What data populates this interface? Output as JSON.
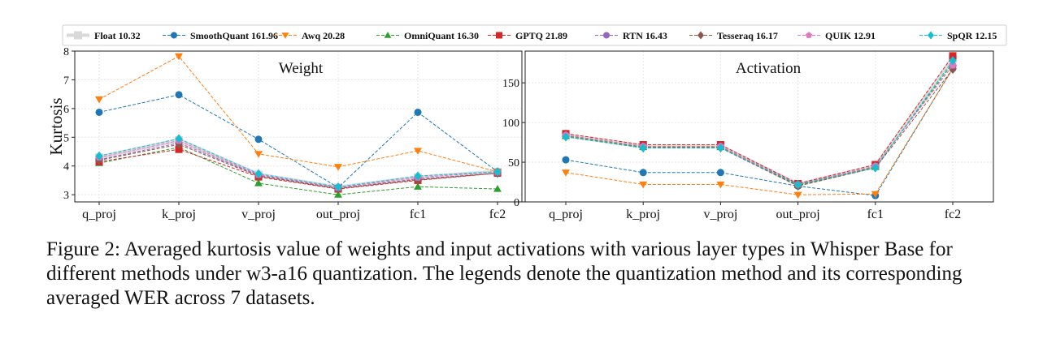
{
  "legend": [
    {
      "name": "Float 10.32",
      "color": "#d9d9d9",
      "marker": "square",
      "style": "solid"
    },
    {
      "name": "SmoothQuant 161.96",
      "color": "#1f77b4",
      "marker": "circle",
      "style": "dashed"
    },
    {
      "name": "Awq 20.28",
      "color": "#ff7f0e",
      "marker": "triangle-down",
      "style": "dashed"
    },
    {
      "name": "OmniQuant 16.30",
      "color": "#2ca02c",
      "marker": "triangle-up",
      "style": "dashed"
    },
    {
      "name": "GPTQ 21.89",
      "color": "#d62728",
      "marker": "square",
      "style": "dashed"
    },
    {
      "name": "RTN 16.43",
      "color": "#9467bd",
      "marker": "circle",
      "style": "dashed"
    },
    {
      "name": "Tesseraq 16.17",
      "color": "#8c564b",
      "marker": "diamond",
      "style": "dashed"
    },
    {
      "name": "QUIK 12.91",
      "color": "#e377c2",
      "marker": "pentagon",
      "style": "dashed"
    },
    {
      "name": "SpQR 12.15",
      "color": "#17becf",
      "marker": "diamond",
      "style": "dashed"
    }
  ],
  "chart_data": [
    {
      "type": "line",
      "title": "Weight",
      "ylabel": "Kurtosis",
      "xlabel": "",
      "categories": [
        "q_proj",
        "k_proj",
        "v_proj",
        "out_proj",
        "fc1",
        "fc2"
      ],
      "ylim": [
        2.75,
        8.0
      ],
      "yticks": [
        3,
        4,
        5,
        6,
        7,
        8
      ],
      "grid": true,
      "series": [
        {
          "name": "Float 10.32",
          "values": [
            4.3,
            4.9,
            3.7,
            3.25,
            3.6,
            3.8
          ]
        },
        {
          "name": "SmoothQuant 161.96",
          "values": [
            5.87,
            6.48,
            4.93,
            3.25,
            5.87,
            3.8
          ]
        },
        {
          "name": "Awq 20.28",
          "values": [
            6.32,
            7.82,
            4.42,
            3.97,
            4.53,
            3.8
          ]
        },
        {
          "name": "OmniQuant 16.30",
          "values": [
            4.1,
            4.65,
            3.4,
            3.0,
            3.28,
            3.2
          ]
        },
        {
          "name": "GPTQ 21.89",
          "values": [
            4.15,
            4.58,
            3.62,
            3.2,
            3.5,
            3.75
          ]
        },
        {
          "name": "RTN 16.43",
          "values": [
            4.22,
            4.8,
            3.68,
            3.22,
            3.55,
            3.75
          ]
        },
        {
          "name": "Tesseraq 16.17",
          "values": [
            4.2,
            4.75,
            3.65,
            3.22,
            3.52,
            3.75
          ]
        },
        {
          "name": "QUIK 12.91",
          "values": [
            4.3,
            4.88,
            3.7,
            3.25,
            3.6,
            3.8
          ]
        },
        {
          "name": "SpQR 12.15",
          "values": [
            4.35,
            4.95,
            3.73,
            3.27,
            3.65,
            3.8
          ]
        }
      ]
    },
    {
      "type": "line",
      "title": "Activation",
      "ylabel": "",
      "xlabel": "",
      "categories": [
        "q_proj",
        "k_proj",
        "v_proj",
        "out_proj",
        "fc1",
        "fc2"
      ],
      "ylim": [
        0,
        190
      ],
      "yticks": [
        0,
        50,
        100,
        150
      ],
      "grid": true,
      "series": [
        {
          "name": "Float 10.32",
          "values": [
            84,
            70,
            70,
            22,
            45,
            180
          ]
        },
        {
          "name": "SmoothQuant 161.96",
          "values": [
            53,
            37,
            37,
            20,
            8,
            168
          ]
        },
        {
          "name": "Awq 20.28",
          "values": [
            37,
            22,
            22,
            9,
            10,
            168
          ]
        },
        {
          "name": "OmniQuant 16.30",
          "values": [
            83,
            69,
            69,
            21,
            44,
            175
          ]
        },
        {
          "name": "GPTQ 21.89",
          "values": [
            86,
            72,
            72,
            23,
            47,
            184
          ]
        },
        {
          "name": "RTN 16.43",
          "values": [
            84,
            70,
            70,
            22,
            45,
            172
          ]
        },
        {
          "name": "Tesseraq 16.17",
          "values": [
            82,
            68,
            68,
            20,
            43,
            167
          ]
        },
        {
          "name": "QUIK 12.91",
          "values": [
            84,
            70,
            70,
            22,
            45,
            172
          ]
        },
        {
          "name": "SpQR 12.15",
          "values": [
            82,
            68,
            68,
            22,
            43,
            178
          ]
        }
      ]
    }
  ],
  "caption": "Figure 2: Averaged kurtosis value of weights and input activations with various layer types in Whisper Base for different methods under w3-a16 quantization. The legends denote the quantization method and its corresponding averaged WER across 7 datasets."
}
